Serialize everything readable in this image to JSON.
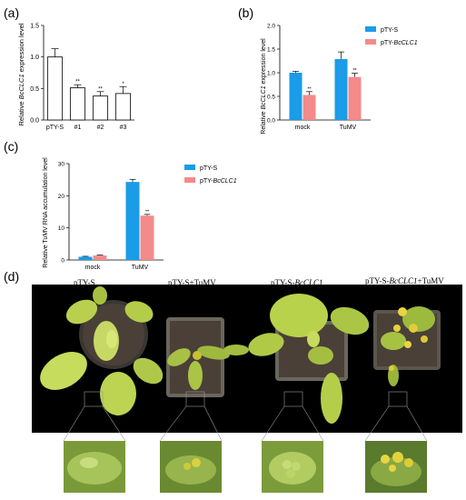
{
  "panels": {
    "a": {
      "letter": "(a)",
      "chart_data": {
        "type": "bar",
        "categories": [
          "pTY-S",
          "#1",
          "#2",
          "#3"
        ],
        "values": [
          1.0,
          0.51,
          0.38,
          0.42
        ],
        "errors": [
          0.13,
          0.05,
          0.07,
          0.11
        ],
        "significance": [
          "",
          "**",
          "**",
          "*"
        ],
        "ylabel_pre": "Relative ",
        "ylabel_gene": "BcCLC1",
        "ylabel_post": " expression level",
        "ylim": [
          0,
          1.5
        ],
        "yticks": [
          "0.0",
          "0.5",
          "1.0",
          "1.5"
        ],
        "bar_fill": "#ffffff"
      }
    },
    "b": {
      "letter": "(b)",
      "chart_data": {
        "type": "bar",
        "categories": [
          "mock",
          "TuMV"
        ],
        "series": [
          {
            "name_plain": "pTY-S",
            "name_italic": "",
            "color": "#1a9ce8",
            "values": [
              1.0,
              1.29
            ],
            "errors": [
              0.03,
              0.15
            ],
            "significance": [
              "",
              ""
            ]
          },
          {
            "name_plain": "pTY-",
            "name_italic": "BcCLC1",
            "color": "#f48a8a",
            "values": [
              0.53,
              0.91
            ],
            "errors": [
              0.07,
              0.08
            ],
            "significance": [
              "**",
              "**"
            ]
          }
        ],
        "ylabel_pre": "Relative ",
        "ylabel_gene": "BcCLC1",
        "ylabel_post": " expression level",
        "ylim": [
          0,
          2.0
        ],
        "yticks": [
          "0.0",
          "0.5",
          "1.0",
          "1.5",
          "2.0"
        ],
        "legend_position": "top-right"
      }
    },
    "c": {
      "letter": "(c)",
      "chart_data": {
        "type": "bar",
        "categories": [
          "mock",
          "TuMV"
        ],
        "series": [
          {
            "name_plain": "pTY-S",
            "name_italic": "",
            "color": "#1a9ce8",
            "values": [
              1.0,
              24.3
            ],
            "errors": [
              0.15,
              0.8
            ],
            "significance": [
              "",
              ""
            ]
          },
          {
            "name_plain": "pTY-",
            "name_italic": "BcCLC1",
            "color": "#f48a8a",
            "values": [
              1.4,
              13.8
            ],
            "errors": [
              0.15,
              0.4
            ],
            "significance": [
              "",
              "**"
            ]
          }
        ],
        "ylabel": "Relative TuMV RNA accumulation level",
        "ylim": [
          0,
          30
        ],
        "yticks": [
          "0",
          "10",
          "20",
          "30"
        ],
        "legend_position": "top-right"
      }
    },
    "d": {
      "letter": "(d)",
      "labels": [
        {
          "plain": "pTY-S",
          "italic": "",
          "suffix": ""
        },
        {
          "plain": "pTY-S+TuMV",
          "italic": "",
          "suffix": ""
        },
        {
          "plain": "pTY-S-",
          "italic": "BcCLC1",
          "suffix": ""
        },
        {
          "plain": "pTY-S-",
          "italic": "BcCLC1",
          "suffix": "+TuMV"
        }
      ]
    }
  }
}
